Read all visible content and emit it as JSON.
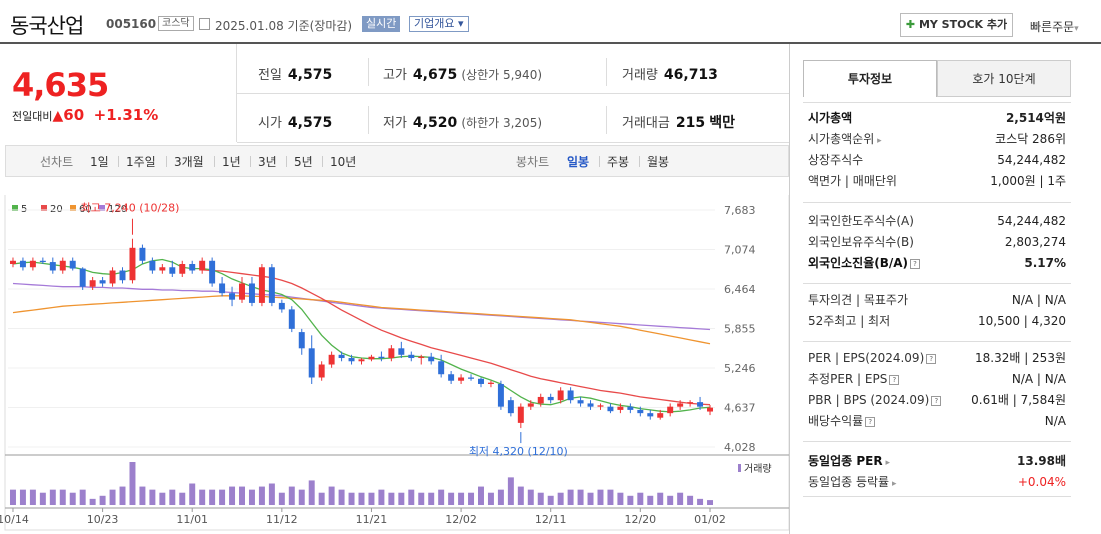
{
  "header": {
    "title": "동국산업",
    "code": "005160",
    "market": "코스닥",
    "date": "2025.01.08",
    "basis": "기준(장마감)",
    "realtime": "실시간",
    "overview": "기업개요",
    "mystock": "MY STOCK 추가",
    "quick_order": "빠른주문"
  },
  "price": {
    "current": "4,635",
    "change_label": "전일대비",
    "change": "60",
    "change_pct": "+1.31%"
  },
  "quotes": {
    "prev_close": {
      "label": "전일",
      "value": "4,575"
    },
    "high": {
      "label": "고가",
      "value": "4,675",
      "note": "(상한가 5,940)"
    },
    "volume": {
      "label": "거래량",
      "value": "46,713"
    },
    "open": {
      "label": "시가",
      "value": "4,575"
    },
    "low": {
      "label": "저가",
      "value": "4,520",
      "note": "(하한가 3,205)"
    },
    "amount": {
      "label": "거래대금",
      "value": "215",
      "unit": "백만"
    }
  },
  "toolbar": {
    "line_label": "선차트",
    "line_items": [
      "1일",
      "1주일",
      "3개월",
      "1년",
      "3년",
      "5년",
      "10년"
    ],
    "candle_label": "봉차트",
    "candle_items": [
      "일봉",
      "주봉",
      "월봉"
    ],
    "candle_selected": "일봉"
  },
  "chart_data": {
    "type": "candlestick",
    "legend": [
      "5",
      "20",
      "60",
      "120"
    ],
    "legend_colors": [
      "#52b34c",
      "#e84a4a",
      "#ef9430",
      "#a57ad8"
    ],
    "y_ticks": [
      "7,683",
      "7,074",
      "6,464",
      "5,855",
      "5,246",
      "4,637",
      "4,028"
    ],
    "x_ticks": [
      "10/14",
      "10/23",
      "11/01",
      "11/12",
      "11/21",
      "12/02",
      "12/11",
      "12/20",
      "01/02"
    ],
    "high_annot": "최고 7,240 (10/28)",
    "low_annot": "최저 4,320 (12/10)",
    "volume_label": "거래량",
    "candles": [
      [
        6850,
        6950,
        6800,
        6900
      ],
      [
        6900,
        6950,
        6750,
        6800
      ],
      [
        6800,
        6950,
        6750,
        6900
      ],
      [
        6900,
        6950,
        6850,
        6880
      ],
      [
        6880,
        6950,
        6700,
        6750
      ],
      [
        6750,
        6950,
        6700,
        6900
      ],
      [
        6900,
        6950,
        6750,
        6780
      ],
      [
        6780,
        6800,
        6450,
        6500
      ],
      [
        6500,
        6650,
        6450,
        6600
      ],
      [
        6600,
        6650,
        6500,
        6550
      ],
      [
        6550,
        6800,
        6500,
        6750
      ],
      [
        6750,
        6800,
        6550,
        6600
      ],
      [
        6600,
        7240,
        6550,
        7100
      ],
      [
        7100,
        7150,
        6850,
        6900
      ],
      [
        6900,
        6950,
        6700,
        6750
      ],
      [
        6750,
        6850,
        6700,
        6800
      ],
      [
        6800,
        6900,
        6650,
        6700
      ],
      [
        6700,
        6900,
        6650,
        6850
      ],
      [
        6850,
        6900,
        6700,
        6750
      ],
      [
        6750,
        6950,
        6700,
        6900
      ],
      [
        6900,
        6950,
        6500,
        6550
      ],
      [
        6550,
        6650,
        6350,
        6400
      ],
      [
        6400,
        6500,
        6200,
        6300
      ],
      [
        6300,
        6650,
        6250,
        6550
      ],
      [
        6550,
        6650,
        6200,
        6250
      ],
      [
        6250,
        6850,
        6200,
        6800
      ],
      [
        6800,
        6850,
        6200,
        6250
      ],
      [
        6250,
        6300,
        6100,
        6150
      ],
      [
        6150,
        6200,
        5800,
        5850
      ],
      [
        5800,
        5850,
        5450,
        5550
      ],
      [
        5550,
        5750,
        5000,
        5100
      ],
      [
        5100,
        5350,
        5050,
        5300
      ],
      [
        5300,
        5500,
        5250,
        5450
      ],
      [
        5450,
        5500,
        5350,
        5400
      ],
      [
        5400,
        5450,
        5300,
        5350
      ],
      [
        5350,
        5400,
        5300,
        5380
      ],
      [
        5380,
        5450,
        5350,
        5420
      ],
      [
        5420,
        5500,
        5350,
        5400
      ],
      [
        5400,
        5600,
        5350,
        5550
      ],
      [
        5550,
        5650,
        5400,
        5450
      ],
      [
        5450,
        5500,
        5350,
        5400
      ],
      [
        5400,
        5450,
        5300,
        5420
      ],
      [
        5420,
        5480,
        5300,
        5350
      ],
      [
        5350,
        5450,
        5100,
        5150
      ],
      [
        5150,
        5200,
        5000,
        5050
      ],
      [
        5050,
        5150,
        5000,
        5100
      ],
      [
        5100,
        5150,
        5050,
        5080
      ],
      [
        5080,
        5100,
        4950,
        5000
      ],
      [
        5000,
        5050,
        4950,
        5020
      ],
      [
        5000,
        5050,
        4600,
        4650
      ],
      [
        4750,
        4800,
        4500,
        4550
      ],
      [
        4400,
        4700,
        4320,
        4650
      ],
      [
        4650,
        4750,
        4600,
        4700
      ],
      [
        4700,
        4850,
        4650,
        4800
      ],
      [
        4800,
        4850,
        4700,
        4750
      ],
      [
        4750,
        4950,
        4700,
        4900
      ],
      [
        4900,
        4950,
        4700,
        4750
      ],
      [
        4750,
        4800,
        4650,
        4700
      ],
      [
        4700,
        4750,
        4600,
        4650
      ],
      [
        4650,
        4700,
        4600,
        4670
      ],
      [
        4650,
        4700,
        4550,
        4580
      ],
      [
        4600,
        4700,
        4550,
        4650
      ],
      [
        4650,
        4700,
        4550,
        4600
      ],
      [
        4600,
        4650,
        4500,
        4550
      ],
      [
        4550,
        4600,
        4450,
        4500
      ],
      [
        4480,
        4600,
        4450,
        4550
      ],
      [
        4550,
        4700,
        4500,
        4650
      ],
      [
        4650,
        4750,
        4600,
        4700
      ],
      [
        4700,
        4750,
        4650,
        4720
      ],
      [
        4720,
        4800,
        4600,
        4650
      ],
      [
        4575,
        4675,
        4520,
        4635
      ]
    ],
    "ma5": [
      6850,
      6870,
      6880,
      6860,
      6840,
      6820,
      6800,
      6770,
      6720,
      6700,
      6690,
      6720,
      6760,
      6850,
      6900,
      6920,
      6880,
      6800,
      6780,
      6780,
      6760,
      6700,
      6620,
      6560,
      6500,
      6450,
      6420,
      6380,
      6300,
      6150,
      5950,
      5750,
      5600,
      5480,
      5420,
      5400,
      5390,
      5390,
      5400,
      5420,
      5430,
      5420,
      5410,
      5370,
      5300,
      5230,
      5170,
      5110,
      5060,
      5000,
      4900,
      4800,
      4720,
      4690,
      4680,
      4720,
      4780,
      4800,
      4780,
      4740,
      4700,
      4670,
      4650,
      4620,
      4600,
      4580,
      4570,
      4580,
      4600,
      4630,
      4640
    ],
    "ma20": [
      null,
      null,
      null,
      null,
      null,
      null,
      null,
      null,
      null,
      null,
      null,
      null,
      null,
      null,
      null,
      null,
      null,
      null,
      null,
      6760,
      6750,
      6740,
      6720,
      6700,
      6680,
      6660,
      6640,
      6600,
      6550,
      6480,
      6400,
      6320,
      6230,
      6140,
      6060,
      5980,
      5900,
      5830,
      5770,
      5710,
      5660,
      5610,
      5560,
      5520,
      5480,
      5440,
      5400,
      5360,
      5320,
      5270,
      5220,
      5170,
      5120,
      5080,
      5050,
      5020,
      4990,
      4960,
      4930,
      4900,
      4880,
      4860,
      4830,
      4800,
      4780,
      4760,
      4740,
      4720,
      4700,
      4690,
      4680
    ],
    "ma60": [
      6100,
      6120,
      6140,
      6160,
      6180,
      6200,
      6210,
      6220,
      6230,
      6240,
      6250,
      6260,
      6270,
      6280,
      6290,
      6300,
      6310,
      6320,
      6330,
      6340,
      6350,
      6360,
      6360,
      6360,
      6350,
      6350,
      6340,
      6330,
      6320,
      6310,
      6300,
      6290,
      6280,
      6260,
      6240,
      6220,
      6200,
      6180,
      6170,
      6160,
      6150,
      6140,
      6130,
      6120,
      6110,
      6100,
      6090,
      6080,
      6070,
      6060,
      6050,
      6040,
      6030,
      6020,
      6010,
      6000,
      5990,
      5970,
      5950,
      5930,
      5910,
      5890,
      5860,
      5830,
      5800,
      5770,
      5740,
      5710,
      5680,
      5650,
      5620
    ],
    "ma120": [
      6550,
      6540,
      6530,
      6520,
      6510,
      6500,
      6500,
      6500,
      6490,
      6490,
      6480,
      6480,
      6470,
      6460,
      6460,
      6450,
      6450,
      6440,
      6440,
      6430,
      6430,
      6420,
      6410,
      6400,
      6390,
      6380,
      6370,
      6360,
      6340,
      6320,
      6300,
      6280,
      6260,
      6240,
      6220,
      6200,
      6180,
      6170,
      6160,
      6150,
      6140,
      6130,
      6120,
      6110,
      6100,
      6090,
      6080,
      6070,
      6060,
      6050,
      6040,
      6030,
      6020,
      6010,
      6000,
      5990,
      5980,
      5970,
      5960,
      5950,
      5940,
      5930,
      5920,
      5910,
      5900,
      5890,
      5880,
      5870,
      5860,
      5850,
      5840
    ],
    "volumes": [
      25,
      25,
      25,
      20,
      25,
      25,
      20,
      25,
      10,
      15,
      25,
      30,
      70,
      30,
      25,
      20,
      25,
      20,
      35,
      25,
      25,
      25,
      30,
      30,
      25,
      30,
      35,
      20,
      30,
      25,
      40,
      20,
      30,
      25,
      20,
      20,
      20,
      25,
      20,
      20,
      25,
      20,
      20,
      25,
      20,
      20,
      20,
      30,
      20,
      25,
      45,
      30,
      25,
      20,
      15,
      20,
      25,
      25,
      20,
      25,
      25,
      20,
      15,
      20,
      15,
      20,
      15,
      20,
      15,
      10,
      8
    ]
  },
  "panel": {
    "tabs": [
      "투자정보",
      "호가 10단계"
    ],
    "rows1": [
      [
        "시가총액",
        "2,514억원"
      ],
      [
        "시가총액순위",
        "코스닥 286위"
      ],
      [
        "상장주식수",
        "54,244,482"
      ],
      [
        "액면가 | 매매단위",
        "1,000원 | 1주"
      ]
    ],
    "rows2": [
      [
        "외국인한도주식수(A)",
        "54,244,482"
      ],
      [
        "외국인보유주식수(B)",
        "2,803,274"
      ],
      [
        "외국인소진율(B/A)",
        "5.17%"
      ]
    ],
    "rows3": [
      [
        "투자의견 | 목표주가",
        "N/A | N/A"
      ],
      [
        "52주최고 | 최저",
        "10,500 | 4,320"
      ]
    ],
    "rows4": [
      [
        "PER | EPS(2024.09)",
        "18.32배 | 253원"
      ],
      [
        "추정PER | EPS",
        "N/A | N/A"
      ],
      [
        "PBR | BPS (2024.09)",
        "0.61배 | 7,584원"
      ],
      [
        "배당수익률",
        "N/A"
      ]
    ],
    "rows5": [
      [
        "동일업종 PER",
        "13.98배"
      ],
      [
        "동일업종 등락률",
        "+0.04%"
      ]
    ]
  }
}
